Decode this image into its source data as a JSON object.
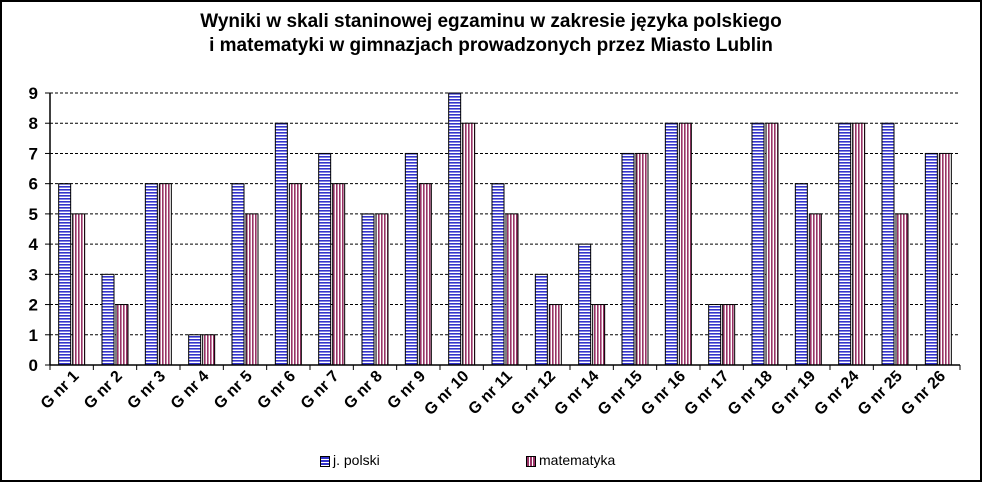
{
  "chart_data": {
    "type": "bar",
    "title_line1": "Wyniki w skali staninowej egzaminu w zakresie języka polskiego",
    "title_line2": "i matematyki  w gimnazjach prowadzonych przez Miasto Lublin",
    "categories": [
      "G nr 1",
      "G nr 2",
      "G nr 3",
      "G nr 4",
      "G nr 5",
      "G nr 6",
      "G nr 7",
      "G nr 8",
      "G nr 9",
      "G nr 10",
      "G nr 11",
      "G nr 12",
      "G nr 14",
      "G nr 15",
      "G nr 16",
      "G nr 17",
      "G nr 18",
      "G nr 19",
      "G nr 24",
      "G nr 25",
      "G nr 26"
    ],
    "series": [
      {
        "name": "j. polski",
        "color": "#3333cc",
        "values": [
          6,
          3,
          6,
          1,
          6,
          8,
          7,
          5,
          7,
          9,
          6,
          3,
          4,
          7,
          8,
          2,
          8,
          6,
          8,
          8,
          7
        ]
      },
      {
        "name": "matematyka",
        "color": "#993366",
        "values": [
          5,
          2,
          6,
          1,
          5,
          6,
          6,
          5,
          6,
          8,
          5,
          2,
          2,
          7,
          8,
          2,
          8,
          5,
          8,
          5,
          7
        ]
      }
    ],
    "ylim": [
      0,
      9
    ],
    "yticks": [
      0,
      1,
      2,
      3,
      4,
      5,
      6,
      7,
      8,
      9
    ],
    "grid": true,
    "legend": "bottom"
  }
}
